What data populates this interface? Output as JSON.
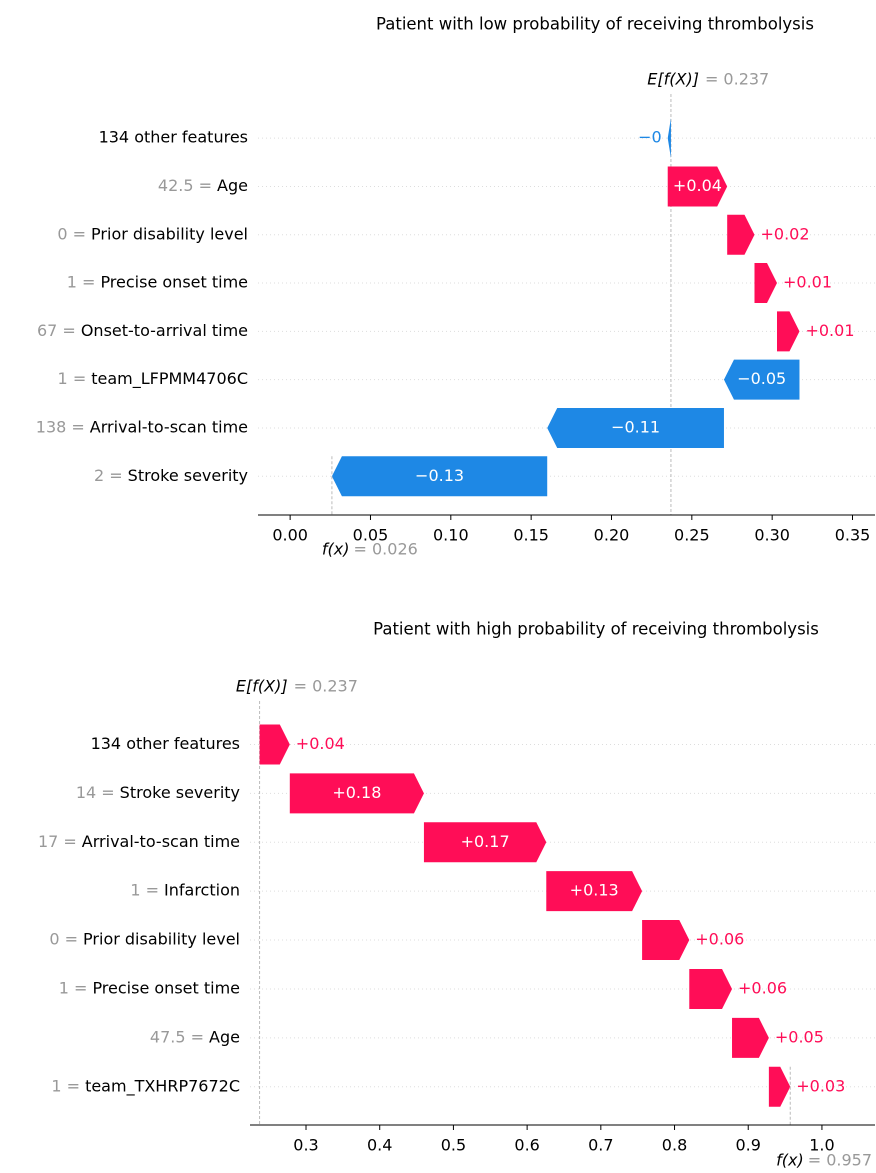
{
  "chart_data": [
    {
      "type": "waterfall",
      "title": "Patient with low probability of receiving thrombolysis",
      "categories": [
        "134 other features",
        "Age",
        "Prior disability level",
        "Precise onset time",
        "Onset-to-arrival time",
        "team_LFPMM4706C",
        "Arrival-to-scan time",
        "Stroke severity"
      ],
      "feature_values": [
        null,
        "42.5 =",
        "0 =",
        "1 =",
        "67 =",
        "1 =",
        "138 =",
        "2 ="
      ],
      "values": [
        -0.002,
        0.037,
        0.017,
        0.014,
        0.014,
        -0.047,
        -0.11,
        -0.134
      ],
      "value_labels": [
        "−0",
        "+0.04",
        "+0.02",
        "+0.01",
        "+0.01",
        "−0.05",
        "−0.11",
        "−0.13"
      ],
      "base_value": 0.237,
      "base_label": "E[f(X)]",
      "base_value_label": "= 0.237",
      "output_value": 0.026,
      "output_label": "f(x)",
      "output_value_label": "= 0.026",
      "positive_color": "#ff0d57",
      "negative_color": "#1e88e5",
      "xlim": [
        -0.02,
        0.364
      ],
      "xticks": [
        {
          "value": 0,
          "label": "0.00"
        },
        0.05,
        {
          "value": 0.1,
          "label": "0.10"
        },
        0.15,
        {
          "value": 0.2,
          "label": "0.20"
        },
        0.25,
        {
          "value": 0.3,
          "label": "0.30"
        },
        0.35
      ]
    },
    {
      "type": "waterfall",
      "title": "Patient with high probability of receiving thrombolysis",
      "categories": [
        "134 other features",
        "Stroke severity",
        "Arrival-to-scan time",
        "Infarction",
        "Prior disability level",
        "Precise onset time",
        "Age",
        "team_TXHRP7672C"
      ],
      "feature_values": [
        null,
        "14 =",
        "17 =",
        "1 =",
        "0 =",
        "1 =",
        "47.5 =",
        "1 ="
      ],
      "values": [
        0.041,
        0.182,
        0.166,
        0.13,
        0.064,
        0.058,
        0.05,
        0.029
      ],
      "value_labels": [
        "+0.04",
        "+0.18",
        "+0.17",
        "+0.13",
        "+0.06",
        "+0.06",
        "+0.05",
        "+0.03"
      ],
      "base_value": 0.237,
      "base_label": "E[f(X)]",
      "base_value_label": "= 0.237",
      "output_value": 0.957,
      "output_label": "f(x)",
      "output_value_label": "= 0.957",
      "positive_color": "#ff0d57",
      "negative_color": "#1e88e5",
      "xlim": [
        0.224,
        1.072
      ],
      "xticks": [
        0.3,
        0.4,
        0.5,
        0.6,
        0.7,
        0.8,
        0.9,
        {
          "value": 1.0,
          "label": "1.0"
        }
      ]
    }
  ]
}
